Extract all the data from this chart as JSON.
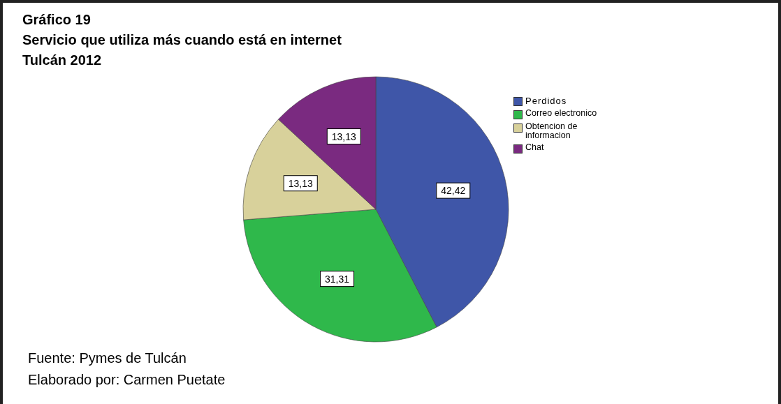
{
  "chart_data": {
    "type": "pie",
    "title": "Gráfico 19",
    "subtitle": "Servicio que utiliza más cuando está en internet\nTulcán 2012",
    "categories": [
      "Perdidos",
      "Correo electronico",
      "Obtencion de informacion",
      "Chat"
    ],
    "values": [
      42.42,
      31.31,
      13.13,
      13.13
    ],
    "value_labels": [
      "42,42",
      "31,31",
      "13,13",
      "13,13"
    ],
    "colors": [
      "#3f56a8",
      "#2fb84b",
      "#d8d19b",
      "#7a2a80"
    ],
    "legend": "top right",
    "annotations": [
      "Fuente: Pymes de Tulcán",
      "Elaborado por: Carmen Puetate"
    ]
  }
}
